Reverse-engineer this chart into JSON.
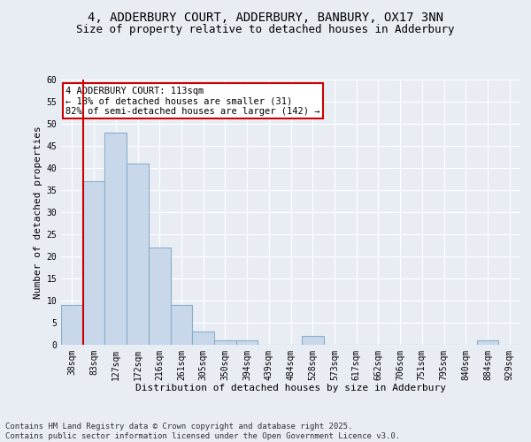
{
  "title_line1": "4, ADDERBURY COURT, ADDERBURY, BANBURY, OX17 3NN",
  "title_line2": "Size of property relative to detached houses in Adderbury",
  "xlabel": "Distribution of detached houses by size in Adderbury",
  "ylabel": "Number of detached properties",
  "bar_color": "#c8d8ea",
  "bar_edge_color": "#8aaec8",
  "background_color": "#e8edf4",
  "plot_bg_color": "#e8edf4",
  "bins": [
    "38sqm",
    "83sqm",
    "127sqm",
    "172sqm",
    "216sqm",
    "261sqm",
    "305sqm",
    "350sqm",
    "394sqm",
    "439sqm",
    "484sqm",
    "528sqm",
    "573sqm",
    "617sqm",
    "662sqm",
    "706sqm",
    "751sqm",
    "795sqm",
    "840sqm",
    "884sqm",
    "929sqm"
  ],
  "values": [
    9,
    37,
    48,
    41,
    22,
    9,
    3,
    1,
    1,
    0,
    0,
    2,
    0,
    0,
    0,
    0,
    0,
    0,
    0,
    1,
    0
  ],
  "ylim": [
    0,
    60
  ],
  "yticks": [
    0,
    5,
    10,
    15,
    20,
    25,
    30,
    35,
    40,
    45,
    50,
    55,
    60
  ],
  "vline_x_index": 1,
  "annotation_text": "4 ADDERBURY COURT: 113sqm\n← 18% of detached houses are smaller (31)\n82% of semi-detached houses are larger (142) →",
  "annotation_box_color": "#ffffff",
  "annotation_box_edge": "#cc0000",
  "footer_text": "Contains HM Land Registry data © Crown copyright and database right 2025.\nContains public sector information licensed under the Open Government Licence v3.0.",
  "title_fontsize": 10,
  "subtitle_fontsize": 9,
  "axis_label_fontsize": 8,
  "tick_fontsize": 7,
  "annotation_fontsize": 7.5,
  "footer_fontsize": 6.5
}
